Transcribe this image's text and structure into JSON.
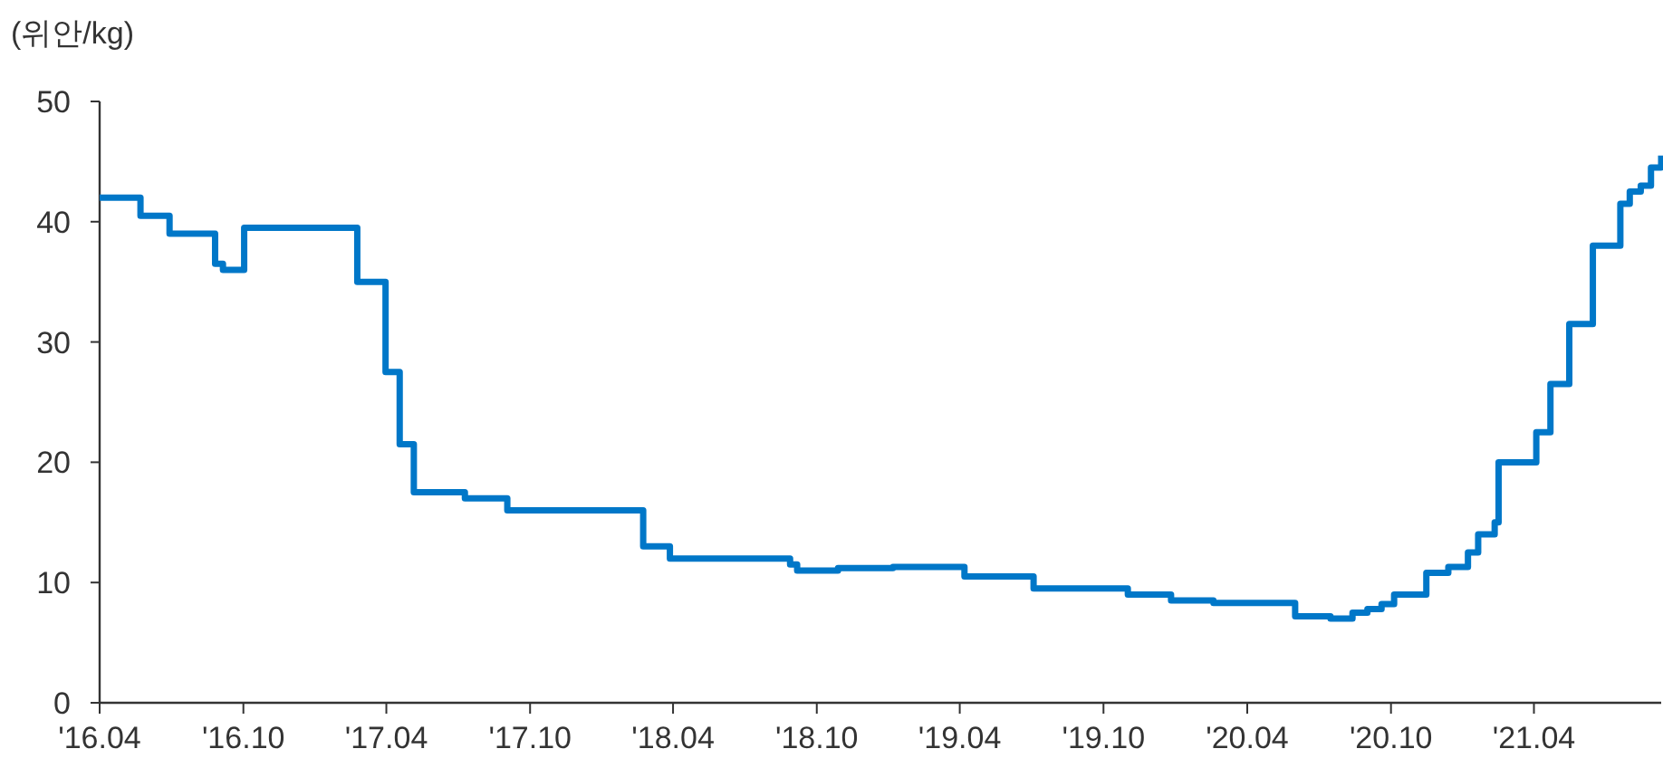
{
  "chart_data": {
    "type": "step",
    "ylabel": "(위안/kg)",
    "x": [
      "2016-04-01",
      "2016-05-23",
      "2016-06-29",
      "2016-08-26",
      "2016-09-05",
      "2016-10-02",
      "2017-02-23",
      "2017-03-31",
      "2017-04-18",
      "2017-05-06",
      "2017-07-10",
      "2017-09-02",
      "2018-02-22",
      "2018-03-28",
      "2018-08-28",
      "2018-09-06",
      "2018-10-28",
      "2019-01-06",
      "2019-04-07",
      "2019-07-04",
      "2019-11-01",
      "2019-12-26",
      "2020-02-18",
      "2020-06-01",
      "2020-07-16",
      "2020-08-13",
      "2020-09-01",
      "2020-09-19",
      "2020-10-05",
      "2020-11-15",
      "2020-12-13",
      "2021-01-07",
      "2021-01-20",
      "2021-02-10",
      "2021-02-15",
      "2021-04-04",
      "2021-04-22",
      "2021-05-16",
      "2021-06-15",
      "2021-07-20",
      "2021-08-01",
      "2021-08-15",
      "2021-08-28",
      "2021-09-10"
    ],
    "series": [
      {
        "color": "#0077c8",
        "values": [
          42,
          40.5,
          39,
          36.5,
          36,
          39.5,
          35,
          27.5,
          21.5,
          17.5,
          17,
          16,
          13,
          12,
          11.5,
          11,
          11.2,
          11.3,
          10.5,
          9.5,
          9,
          8.5,
          8.3,
          7.2,
          7,
          7.5,
          7.8,
          8.2,
          9,
          10.8,
          11.3,
          12.5,
          14,
          15,
          20,
          22.5,
          26.5,
          31.5,
          38,
          41.5,
          42.5,
          43,
          44.5,
          45.5
        ]
      }
    ],
    "xlim": [
      "2016-04-01",
      "2021-09-10"
    ],
    "xticks": [
      {
        "value": "2016-04-01",
        "label": "'16.04"
      },
      {
        "value": "2016-10-01",
        "label": "'16.10"
      },
      {
        "value": "2017-04-01",
        "label": "'17.04"
      },
      {
        "value": "2017-10-01",
        "label": "'17.10"
      },
      {
        "value": "2018-04-01",
        "label": "'18.04"
      },
      {
        "value": "2018-10-01",
        "label": "'18.10"
      },
      {
        "value": "2019-04-01",
        "label": "'19.04"
      },
      {
        "value": "2019-10-01",
        "label": "'19.10"
      },
      {
        "value": "2020-04-01",
        "label": "'20.04"
      },
      {
        "value": "2020-10-01",
        "label": "'20.10"
      },
      {
        "value": "2021-04-01",
        "label": "'21.04"
      }
    ],
    "ylim": [
      0,
      50
    ],
    "yticks": [
      0,
      10,
      20,
      30,
      40,
      50
    ]
  }
}
